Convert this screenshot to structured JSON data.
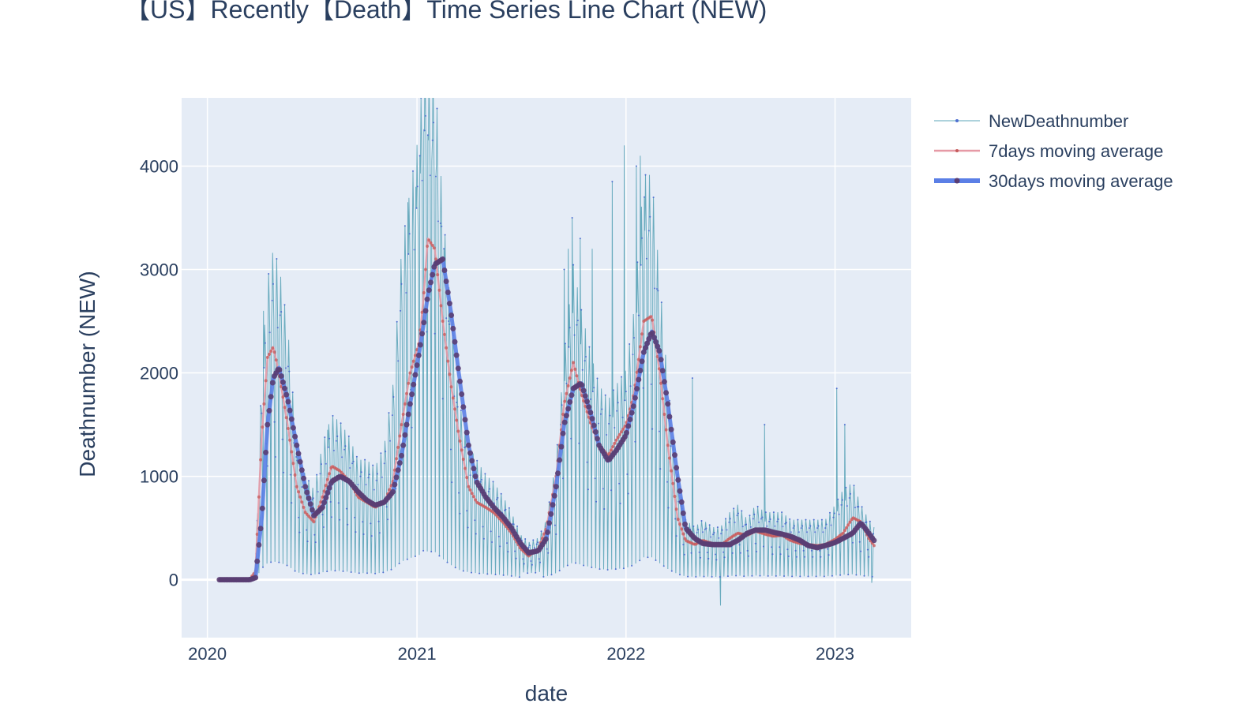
{
  "chart_data": {
    "type": "line",
    "title": "【US】Recently【Death】Time Series Line Chart  (NEW)",
    "xlabel": "date",
    "ylabel": "Deathnumber  (NEW)",
    "x_ticks": [
      "2020",
      "2021",
      "2022",
      "2023"
    ],
    "y_ticks": [
      0,
      1000,
      2000,
      3000,
      4000
    ],
    "xlim": [
      "2019-11-17",
      "2023-05-14"
    ],
    "ylim": [
      -560,
      4660
    ],
    "grid": true,
    "legend_position": "top-right",
    "x_dates": [
      "2020-01-22",
      "2020-03-01",
      "2020-03-15",
      "2020-03-25",
      "2020-04-05",
      "2020-04-15",
      "2020-04-25",
      "2020-05-05",
      "2020-05-20",
      "2020-06-05",
      "2020-06-20",
      "2020-07-05",
      "2020-07-20",
      "2020-08-05",
      "2020-08-20",
      "2020-09-05",
      "2020-09-20",
      "2020-10-05",
      "2020-10-20",
      "2020-11-05",
      "2020-11-20",
      "2020-12-05",
      "2020-12-20",
      "2021-01-05",
      "2021-01-12",
      "2021-01-20",
      "2021-02-01",
      "2021-02-15",
      "2021-03-01",
      "2021-03-15",
      "2021-04-01",
      "2021-04-15",
      "2021-05-01",
      "2021-05-15",
      "2021-06-01",
      "2021-06-15",
      "2021-07-01",
      "2021-07-15",
      "2021-08-01",
      "2021-08-15",
      "2021-09-01",
      "2021-09-15",
      "2021-10-01",
      "2021-10-15",
      "2021-11-01",
      "2021-11-15",
      "2021-12-01",
      "2021-12-15",
      "2022-01-01",
      "2022-01-15",
      "2022-02-01",
      "2022-02-15",
      "2022-03-01",
      "2022-03-15",
      "2022-04-01",
      "2022-04-15",
      "2022-05-01",
      "2022-05-15",
      "2022-06-01",
      "2022-06-15",
      "2022-07-01",
      "2022-07-15",
      "2022-08-01",
      "2022-08-15",
      "2022-09-01",
      "2022-09-15",
      "2022-10-01",
      "2022-10-15",
      "2022-11-01",
      "2022-11-15",
      "2022-12-01",
      "2022-12-15",
      "2023-01-01",
      "2023-01-15",
      "2023-02-01",
      "2023-02-15",
      "2023-03-01",
      "2023-03-10"
    ],
    "series": [
      {
        "name": "NewDeathnumber",
        "color": "#5ba4b8",
        "marker_color": "#4f6fd1",
        "width": 1,
        "values": [
          0,
          2,
          5,
          80,
          1400,
          2000,
          2200,
          2100,
          1700,
          900,
          700,
          600,
          900,
          1100,
          1050,
          950,
          800,
          800,
          750,
          900,
          1300,
          2200,
          2600,
          3000,
          3500,
          3400,
          3400,
          2500,
          1800,
          1200,
          900,
          800,
          700,
          650,
          550,
          450,
          300,
          250,
          280,
          400,
          800,
          1500,
          2100,
          1800,
          1500,
          1300,
          1200,
          1300,
          1400,
          1800,
          2700,
          2700,
          2000,
          1300,
          700,
          400,
          350,
          400,
          350,
          350,
          450,
          500,
          400,
          500,
          450,
          450,
          450,
          400,
          400,
          400,
          400,
          400,
          500,
          600,
          650,
          500,
          400,
          350
        ],
        "spikes": [
          [
            "2020-04-08",
            2600
          ],
          [
            "2020-04-22",
            2500
          ],
          [
            "2020-05-06",
            2300
          ],
          [
            "2020-07-29",
            1450
          ],
          [
            "2020-12-16",
            3650
          ],
          [
            "2020-12-30",
            3800
          ],
          [
            "2021-01-06",
            4100
          ],
          [
            "2021-01-13",
            4350
          ],
          [
            "2021-01-20",
            4300
          ],
          [
            "2021-01-27",
            4050
          ],
          [
            "2021-02-03",
            3900
          ],
          [
            "2021-02-17",
            3200
          ],
          [
            "2021-03-04",
            2600
          ],
          [
            "2021-09-15",
            3000
          ],
          [
            "2021-09-22",
            3200
          ],
          [
            "2021-09-29",
            3500
          ],
          [
            "2021-10-13",
            3300
          ],
          [
            "2021-11-03",
            3200
          ],
          [
            "2021-12-08",
            3850
          ],
          [
            "2021-12-29",
            4200
          ],
          [
            "2022-01-19",
            4000
          ],
          [
            "2022-01-26",
            4100
          ],
          [
            "2022-02-02",
            3700
          ],
          [
            "2022-02-09",
            3300
          ],
          [
            "2022-04-27",
            1950
          ],
          [
            "2022-08-31",
            1500
          ],
          [
            "2023-01-04",
            1850
          ],
          [
            "2023-01-18",
            1500
          ]
        ],
        "dips": [
          [
            "2022-06-15",
            -250
          ],
          [
            "2023-03-06",
            -30
          ]
        ]
      },
      {
        "name": "7days moving average",
        "color": "#e69aa6",
        "marker_color": "#c55a5a",
        "width": 2.5,
        "values": [
          0,
          2,
          5,
          80,
          1400,
          2150,
          2250,
          2000,
          1500,
          900,
          650,
          560,
          800,
          1100,
          1050,
          950,
          800,
          750,
          700,
          750,
          950,
          1500,
          2000,
          2300,
          2700,
          3300,
          3200,
          2500,
          1900,
          1400,
          900,
          750,
          700,
          650,
          550,
          450,
          300,
          230,
          300,
          500,
          1000,
          1700,
          2100,
          1800,
          1500,
          1300,
          1200,
          1350,
          1500,
          1800,
          2500,
          2550,
          2000,
          1300,
          600,
          380,
          340,
          380,
          350,
          330,
          400,
          450,
          430,
          470,
          440,
          420,
          430,
          380,
          350,
          340,
          330,
          340,
          390,
          450,
          600,
          560,
          400,
          330
        ]
      },
      {
        "name": "30days moving average",
        "color": "#5b7fe6",
        "marker_color": "#5a3e73",
        "width": 5,
        "values": [
          0,
          0,
          0,
          20,
          600,
          1500,
          1950,
          2050,
          1750,
          1300,
          900,
          620,
          700,
          950,
          1000,
          950,
          850,
          770,
          720,
          750,
          850,
          1200,
          1700,
          2200,
          2450,
          2750,
          3050,
          3100,
          2600,
          2000,
          1300,
          950,
          800,
          700,
          600,
          500,
          350,
          260,
          280,
          400,
          900,
          1500,
          1850,
          1900,
          1600,
          1300,
          1150,
          1250,
          1400,
          1700,
          2200,
          2400,
          2200,
          1700,
          1000,
          500,
          400,
          350,
          340,
          340,
          340,
          380,
          450,
          480,
          480,
          460,
          440,
          420,
          380,
          330,
          310,
          330,
          360,
          400,
          450,
          550,
          450,
          380
        ]
      }
    ]
  }
}
